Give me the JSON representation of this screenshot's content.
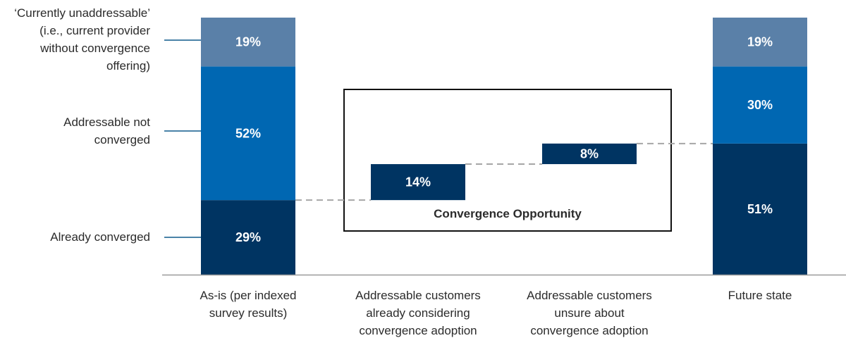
{
  "chart_data": {
    "type": "waterfall-stacked-bar",
    "categories": [
      "As-is (per indexed\nsurvey results)",
      "Addressable customers\nalready considering\nconvergence adoption",
      "Addressable customers\nunsure about\nconvergence adoption",
      "Future state"
    ],
    "series": [
      {
        "name": "Already converged",
        "color": "#003462"
      },
      {
        "name": "Addressable not\nconverged",
        "color": "#0067b2"
      },
      {
        "name": "‘Currently unaddressable’\n(i.e., current provider\nwithout convergence\noffering)",
        "color": "#5a80a8"
      }
    ],
    "stacks": [
      {
        "category_index": 0,
        "segments": [
          {
            "series": 0,
            "value": 29,
            "label": "29%"
          },
          {
            "series": 1,
            "value": 52,
            "label": "52%"
          },
          {
            "series": 2,
            "value": 19,
            "label": "19%"
          }
        ]
      },
      {
        "category_index": 3,
        "segments": [
          {
            "series": 0,
            "value": 51,
            "label": "51%"
          },
          {
            "series": 1,
            "value": 30,
            "label": "30%"
          },
          {
            "series": 2,
            "value": 19,
            "label": "19%"
          }
        ]
      }
    ],
    "floating": [
      {
        "category_index": 1,
        "base": 29,
        "value": 14,
        "label": "14%",
        "color": "#003462"
      },
      {
        "category_index": 2,
        "base": 43,
        "value": 8,
        "label": "8%",
        "color": "#003462"
      }
    ],
    "annotation_box": {
      "title": "Convergence Opportunity",
      "covers": [
        1,
        2
      ]
    },
    "ylim": [
      0,
      100
    ],
    "connectors": "dashed"
  }
}
